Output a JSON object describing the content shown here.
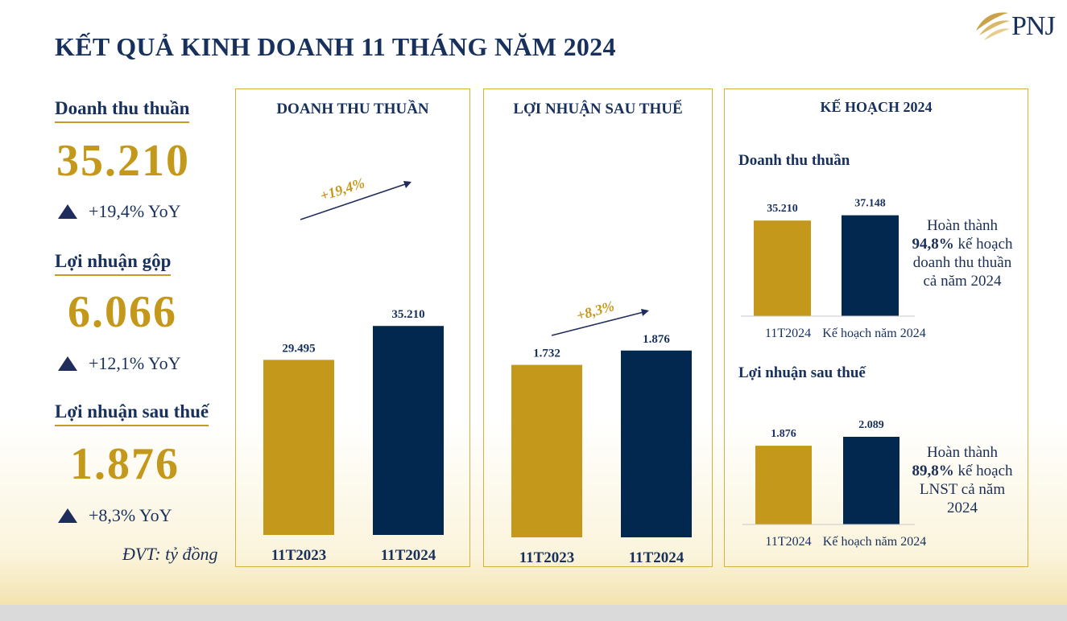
{
  "title": "KẾT QUẢ KINH DOANH 11 THÁNG NĂM 2024",
  "logo": "PNJ",
  "colors": {
    "gold": "#c4981a",
    "navy": "#03284f",
    "text": "#17305c"
  },
  "kpis": [
    {
      "label": "Doanh thu thuần",
      "value": "35.210",
      "yoy": "+19,4% YoY"
    },
    {
      "label": "Lợi nhuận gộp",
      "value": "6.066",
      "yoy": "+12,1% YoY"
    },
    {
      "label": "Lợi nhuận sau thuế",
      "value": "1.876",
      "yoy": "+8,3% YoY"
    }
  ],
  "unit": "ĐVT: tỷ đồng",
  "plan": {
    "title": "KẾ HOẠCH 2024",
    "revenue_title": "Doanh thu thuần",
    "revenue_note": {
      "pre": "Hoàn thành",
      "pct": "94,8%",
      "post1": "kế hoạch",
      "post2": "doanh thu thuần",
      "post3": "cả năm 2024"
    },
    "profit_title": "Lợi nhuận sau thuế",
    "profit_note": {
      "pre": "Hoàn thành",
      "pct": "89,8%",
      "post1": "kế hoạch",
      "post2": "LNST cả năm",
      "post3": "2024"
    }
  },
  "chart_data": [
    {
      "type": "bar",
      "title": "DOANH THU THUẦN",
      "categories": [
        "11T2023",
        "11T2024"
      ],
      "values": [
        29.495,
        35.21
      ],
      "labels": [
        "29.495",
        "35.210"
      ],
      "growth": "+19,4%",
      "ylim": [
        0,
        37
      ]
    },
    {
      "type": "bar",
      "title": "LỢI NHUẬN SAU THUẾ",
      "categories": [
        "11T2023",
        "11T2024"
      ],
      "values": [
        1.732,
        1.876
      ],
      "labels": [
        "1.732",
        "1.876"
      ],
      "growth": "+8,3%",
      "ylim": [
        0,
        2.69
      ]
    },
    {
      "type": "bar",
      "title": "Doanh thu thuần",
      "categories": [
        "11T2024",
        "Kế hoạch năm 2024"
      ],
      "values": [
        35.21,
        37.148
      ],
      "labels": [
        "35.210",
        "37.148"
      ],
      "ylim": [
        0,
        40
      ]
    },
    {
      "type": "bar",
      "title": "Lợi nhuận sau thuế",
      "categories": [
        "11T2024",
        "Kế hoạch năm 2024"
      ],
      "values": [
        1.876,
        2.089
      ],
      "labels": [
        "1.876",
        "2.089"
      ],
      "ylim": [
        0,
        2.3
      ]
    }
  ]
}
